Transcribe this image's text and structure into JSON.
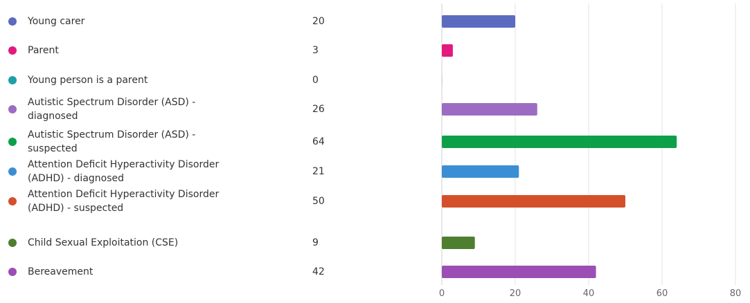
{
  "chart_data": {
    "type": "bar",
    "orientation": "horizontal",
    "categories": [
      "Young carer",
      "Parent",
      "Young person is a parent",
      "Autistic Spectrum Disorder (ASD) - diagnosed",
      "Autistic Spectrum Disorder (ASD) - suspected",
      "Attention Deficit Hyperactivity Disorder (ADHD) - diagnosed",
      "Attention Deficit Hyperactivity Disorder (ADHD) - suspected",
      "Child Sexual Exploitation (CSE)",
      "Bereavement"
    ],
    "labels": [
      [
        "Young carer"
      ],
      [
        "Parent"
      ],
      [
        "Young person is a parent"
      ],
      [
        "Autistic Spectrum Disorder (ASD) -",
        "diagnosed"
      ],
      [
        "Autistic Spectrum Disorder (ASD) -",
        "suspected"
      ],
      [
        "Attention Deficit Hyperactivity Disorder",
        "(ADHD) - diagnosed"
      ],
      [
        "Attention Deficit Hyperactivity Disorder",
        "(ADHD) - suspected"
      ],
      [
        "Child Sexual Exploitation (CSE)"
      ],
      [
        "Bereavement"
      ]
    ],
    "values": [
      20,
      3,
      0,
      26,
      64,
      21,
      50,
      9,
      42
    ],
    "colors": [
      "#5b6bbf",
      "#e3197f",
      "#1e9faa",
      "#9c6cc2",
      "#0da049",
      "#3a8fd4",
      "#d4502a",
      "#4e7f2f",
      "#9b4fb5"
    ],
    "xlim": [
      0,
      80
    ],
    "xticks": [
      0,
      20,
      40,
      60,
      80
    ],
    "grid": true,
    "legend": "left",
    "title": "",
    "xlabel": "",
    "ylabel": ""
  }
}
